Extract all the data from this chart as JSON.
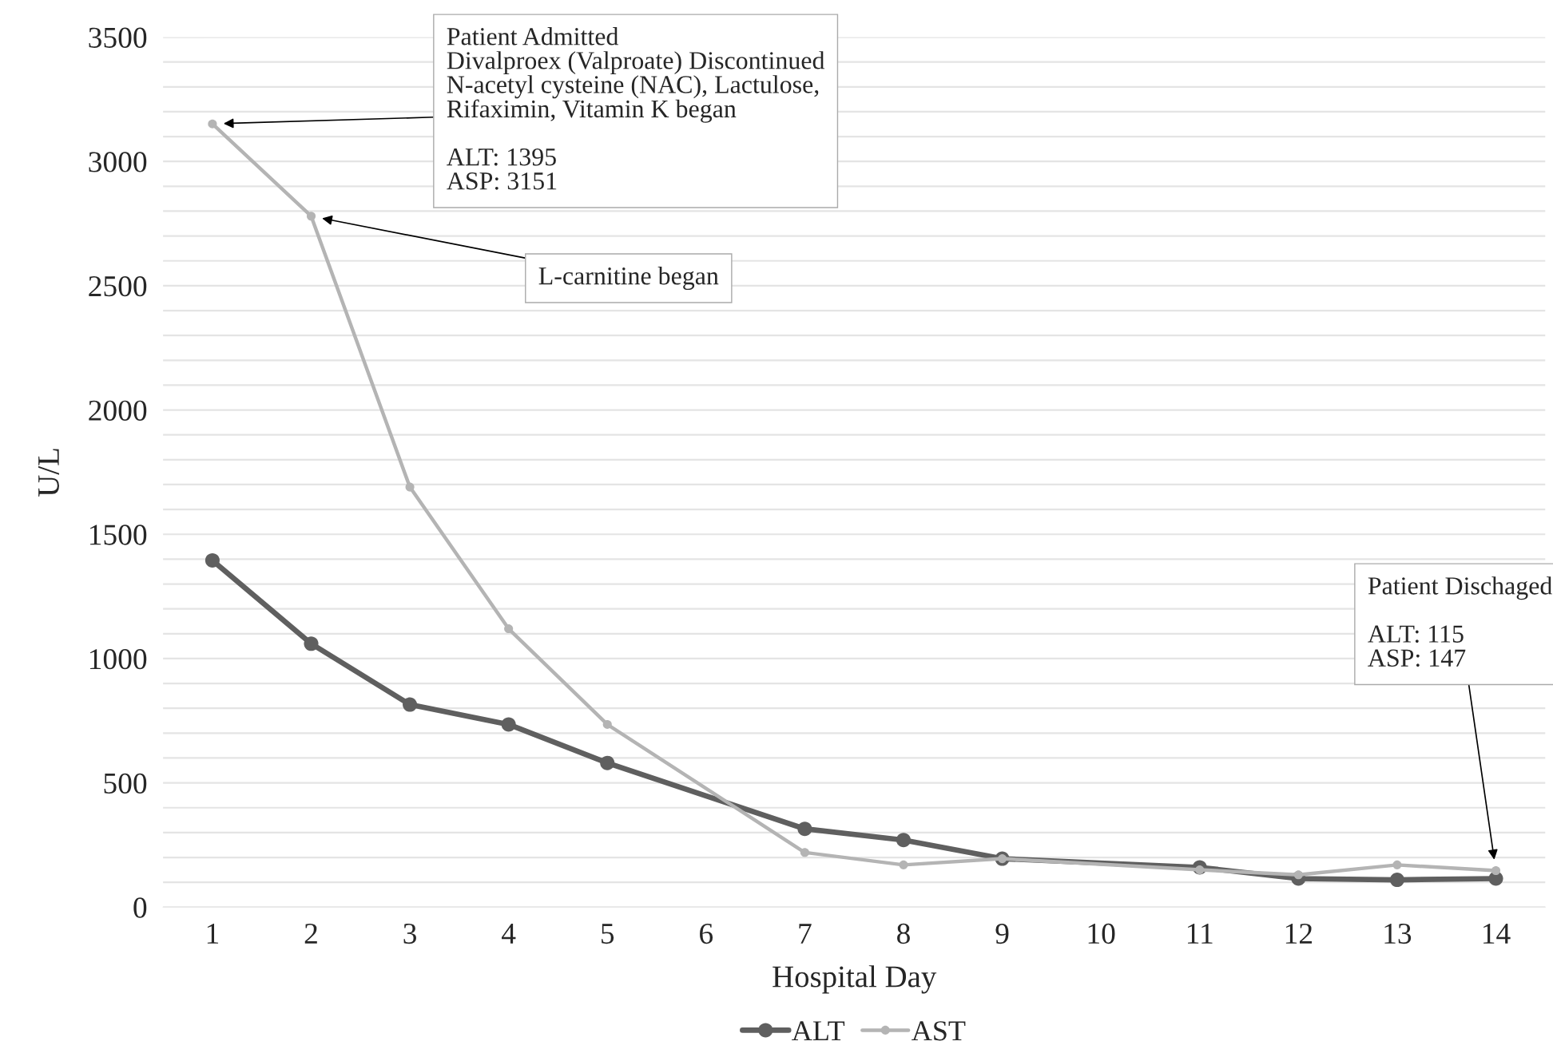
{
  "chart_data": {
    "type": "line",
    "xlabel": "Hospital Day",
    "ylabel": "U/L",
    "x": [
      1,
      2,
      3,
      4,
      5,
      7,
      8,
      9,
      11,
      12,
      13,
      14
    ],
    "series": [
      {
        "name": "ALT",
        "color": "#5f5f5f",
        "values": [
          1395,
          1060,
          815,
          735,
          580,
          315,
          270,
          195,
          160,
          115,
          110,
          115
        ]
      },
      {
        "name": "AST",
        "color": "#b4b4b4",
        "values": [
          3151,
          2780,
          1690,
          1120,
          735,
          220,
          170,
          195,
          150,
          130,
          170,
          147
        ]
      }
    ],
    "xlim": [
      0.5,
      14.5
    ],
    "xticks": [
      1,
      2,
      3,
      4,
      5,
      6,
      7,
      8,
      9,
      10,
      11,
      12,
      13,
      14
    ],
    "ylim": [
      0,
      3500
    ],
    "yticks": [
      0,
      {
        "value": 100,
        "label": null
      },
      {
        "value": 200,
        "label": null
      },
      {
        "value": 300,
        "label": null
      },
      {
        "value": 400,
        "label": null
      },
      500,
      {
        "value": 600,
        "label": null
      },
      {
        "value": 700,
        "label": null
      },
      {
        "value": 800,
        "label": null
      },
      {
        "value": 900,
        "label": null
      },
      1000,
      {
        "value": 1100,
        "label": null
      },
      {
        "value": 1200,
        "label": null
      },
      {
        "value": 1300,
        "label": null
      },
      {
        "value": 1400,
        "label": null
      },
      1500,
      {
        "value": 1600,
        "label": null
      },
      {
        "value": 1700,
        "label": null
      },
      {
        "value": 1800,
        "label": null
      },
      {
        "value": 1900,
        "label": null
      },
      2000,
      {
        "value": 2100,
        "label": null
      },
      {
        "value": 2200,
        "label": null
      },
      {
        "value": 2300,
        "label": null
      },
      {
        "value": 2400,
        "label": null
      },
      2500,
      {
        "value": 2600,
        "label": null
      },
      {
        "value": 2700,
        "label": null
      },
      {
        "value": 2800,
        "label": null
      },
      {
        "value": 2900,
        "label": null
      },
      3000,
      {
        "value": 3100,
        "label": null
      },
      {
        "value": 3200,
        "label": null
      },
      {
        "value": 3300,
        "label": null
      },
      {
        "value": 3400,
        "label": null
      },
      3500
    ],
    "grid": "y",
    "legend": "bottom",
    "marker": "circle",
    "line_style": "solid",
    "annotations": [
      "Patient Admitted\nDivalproex (Valproate) Discontinued\nN-acetyl cysteine (NAC), Lactulose,\nRifaximin, Vitamin K began\n\nALT: 1395\nASP: 3151",
      "L-carnitine began",
      "Patient Dischaged\n\nALT: 115\nASP: 147"
    ]
  }
}
